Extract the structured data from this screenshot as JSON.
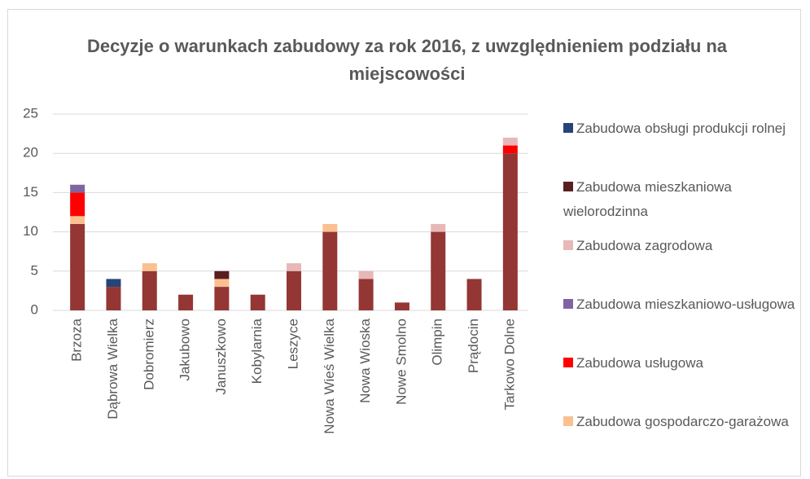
{
  "chart_data": {
    "type": "bar",
    "stacked": true,
    "title": "Decyzje o warunkach zabudowy za rok 2016, z uwzględnieniem podziału na miejscowości",
    "categories": [
      "Brzoza",
      "Dąbrowa Wielka",
      "Dobromierz",
      "Jakubowo",
      "Januszkowo",
      "Kobylarnia",
      "Leszyce",
      "Nowa Wieś Wielka",
      "Nowa Wioska",
      "Nowe Smolno",
      "Olimpin",
      "Prądocin",
      "Tarkowo Dolne"
    ],
    "series": [
      {
        "name": null,
        "color": "#943634",
        "values": [
          11,
          3,
          5,
          2,
          3,
          2,
          5,
          10,
          4,
          1,
          10,
          4,
          20
        ]
      },
      {
        "name": "Zabudowa gospodarczo-garażowa",
        "color": "#fac090",
        "values": [
          1,
          0,
          1,
          0,
          1,
          0,
          0,
          1,
          0,
          0,
          0,
          0,
          0
        ]
      },
      {
        "name": "Zabudowa usługowa",
        "color": "#ff0000",
        "values": [
          3,
          0,
          0,
          0,
          0,
          0,
          0,
          0,
          0,
          0,
          0,
          0,
          1
        ]
      },
      {
        "name": "Zabudowa mieszkaniowo-usługowa",
        "color": "#8064a2",
        "values": [
          1,
          0,
          0,
          0,
          0,
          0,
          0,
          0,
          0,
          0,
          0,
          0,
          0
        ]
      },
      {
        "name": "Zabudowa zagrodowa",
        "color": "#e6b8b7",
        "values": [
          0,
          0,
          0,
          0,
          0,
          0,
          1,
          0,
          1,
          0,
          1,
          0,
          1
        ]
      },
      {
        "name": "Zabudowa mieszkaniowa wielorodzinna",
        "color": "#5a1e1e",
        "values": [
          0,
          0,
          0,
          0,
          1,
          0,
          0,
          0,
          0,
          0,
          0,
          0,
          0
        ]
      },
      {
        "name": "Zabudowa obsługi produkcji rolnej",
        "color": "#264478",
        "values": [
          0,
          1,
          0,
          0,
          0,
          0,
          0,
          0,
          0,
          0,
          0,
          0,
          0
        ]
      }
    ],
    "ylim": [
      0,
      25
    ],
    "yticks": [
      0,
      5,
      10,
      15,
      20,
      25
    ],
    "grid": true,
    "legend": "right"
  }
}
